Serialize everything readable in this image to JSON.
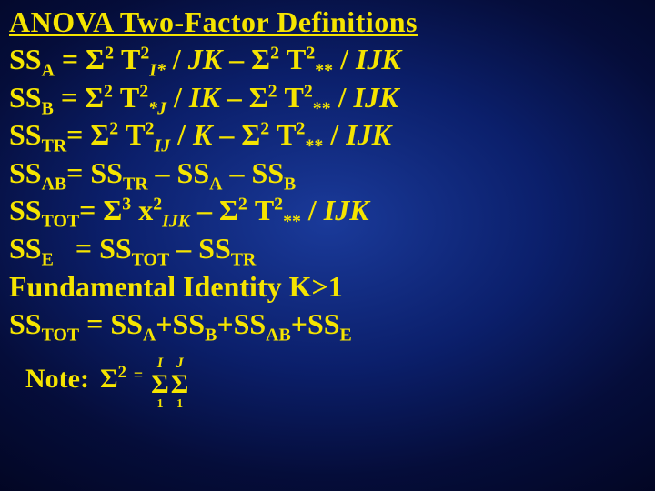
{
  "colors": {
    "text": "#f5e400",
    "bg_center": "#1a3a9a",
    "bg_mid": "#0b1f6b",
    "bg_outer": "#020520"
  },
  "title": "ANOVA Two-Factor Definitions",
  "equations": {
    "ssa": {
      "lhs": "SS",
      "lhs_sub": "A",
      "term1_div": "JK",
      "term1_sub": "I*",
      "term2_sub": "**",
      "term2_div": "IJK"
    },
    "ssb": {
      "lhs": "SS",
      "lhs_sub": "B",
      "term1_div": "IK",
      "term1_sub": "*J",
      "term2_sub": "**",
      "term2_div": "IJK"
    },
    "sstr": {
      "lhs": "SS",
      "lhs_sub": "TR",
      "term1_div": "K",
      "term1_sub": "IJ",
      "term2_sub": "**",
      "term2_div": "IJK"
    },
    "ssab": {
      "lhs": "SS",
      "lhs_sub": "AB",
      "rhs_text": "= SS",
      "t1_sub": "TR",
      "t2_sub": "A",
      "t3_sub": "B",
      "minus": " – SS"
    },
    "sstot": {
      "lhs": "SS",
      "lhs_sub": "TOT",
      "x_sub": "IJK",
      "term2_sub": "**",
      "term2_div": "IJK"
    },
    "sse": {
      "lhs": "SS",
      "lhs_sub": "E",
      "rhs_text": "= SS",
      "t1_sub": "TOT",
      "t2_sub": "TR",
      "minus": " – SS"
    },
    "fund": {
      "text": "Fundamental Identity K>1"
    },
    "identity": {
      "lhs": "SS",
      "lhs_sub": "TOT",
      "eq": " = SS",
      "a": "A",
      "b": "B",
      "ab": "AB",
      "e": "E",
      "plus": "+SS"
    }
  },
  "note": {
    "label": "Note:",
    "sigma2_sup": "2",
    "eq": "=",
    "upper1": "I",
    "upper2": "J",
    "lower": "1"
  }
}
